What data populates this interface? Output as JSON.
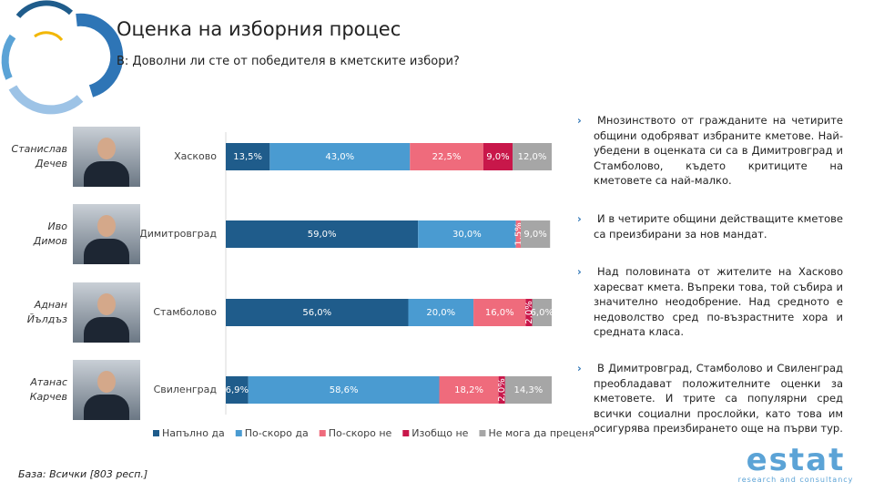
{
  "chart_data": {
    "type": "stacked-bar-horizontal",
    "title": "Оценка на изборния процес",
    "subtitle": "В: Доволни ли сте от победителя в кметските избори?",
    "categories": [
      "Хасково",
      "Димитровград",
      "Стамболово",
      "Свиленград"
    ],
    "xlim": [
      0,
      100
    ],
    "legend": "bottom",
    "series": [
      {
        "name": "Напълно да",
        "color": "#1f5c8b",
        "values": [
          13.5,
          59.0,
          56.0,
          6.9
        ],
        "value_labels": [
          "13,5%",
          "59,0%",
          "56,0%",
          "6,9%"
        ]
      },
      {
        "name": "По-скоро да",
        "color": "#4a9bd1",
        "values": [
          43.0,
          30.0,
          20.0,
          58.6
        ],
        "value_labels": [
          "43,0%",
          "30,0%",
          "20,0%",
          "58,6%"
        ]
      },
      {
        "name": "По-скоро не",
        "color": "#ef6b7c",
        "values": [
          22.5,
          1.5,
          16.0,
          18.2
        ],
        "value_labels": [
          "22,5%",
          "1,5%",
          "16,0%",
          "18,2%"
        ]
      },
      {
        "name": "Изобщо не",
        "color": "#c8174a",
        "values": [
          9.0,
          null,
          2.0,
          2.0
        ],
        "value_labels": [
          "9,0%",
          null,
          "2,0%",
          "2,0%"
        ]
      },
      {
        "name": "Не мога да преценя",
        "color": "#a6a6a6",
        "values": [
          12.0,
          9.0,
          6.0,
          14.3
        ],
        "value_labels": [
          "12,0%",
          "9,0%",
          "6,0%",
          "14,3%"
        ]
      }
    ]
  },
  "people": [
    {
      "first": "Станислав",
      "last": "Дечев"
    },
    {
      "first": "Иво",
      "last": "Димов"
    },
    {
      "first": "Аднан",
      "last": "Йълдъз"
    },
    {
      "first": "Атанас",
      "last": "Карчев"
    }
  ],
  "notes": [
    "Мнозинството от гражданите на четирите общини одобряват избраните кметове. Най-убедени в оценката си са в Димитровград и Стамболово, където критиците на кметовете са най-малко.",
    "И в четирите общини действащите кметове са преизбирани за нов мандат.",
    "Над половината от жителите на Хасково харесват кмета. Въпреки това, той събира и значително неодобрение. Над средното е недоволство сред по-възрастните хора и средната класа.",
    "В Димитровград, Стамболово и Свиленград преобладават положителните оценки за кметовете. И трите са популярни сред всички социални прослойки, като това им осигурява преизбирането още на първи тур."
  ],
  "base": "База: Всички  [803 респ.]",
  "logo": {
    "name": "estat",
    "tagline": "research and consultancy"
  }
}
